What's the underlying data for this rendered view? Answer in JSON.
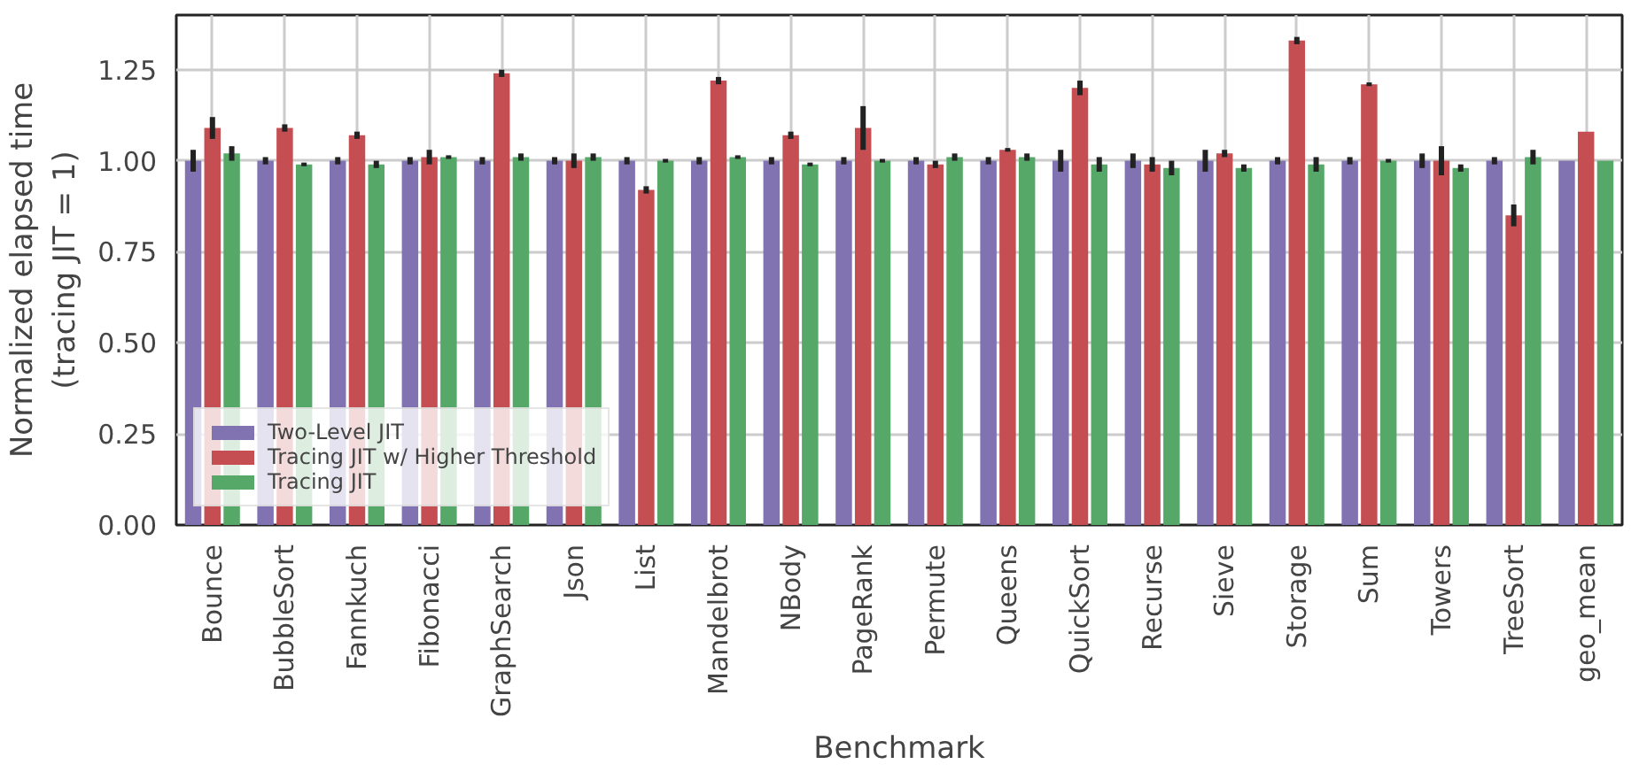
{
  "chart_data": {
    "type": "bar",
    "xlabel": "Benchmark",
    "ylabel": "Normalized elapsed time\n(tracing JIT = 1)",
    "categories": [
      "Bounce",
      "BubbleSort",
      "Fannkuch",
      "Fibonacci",
      "GraphSearch",
      "Json",
      "List",
      "Mandelbrot",
      "NBody",
      "PageRank",
      "Permute",
      "Queens",
      "QuickSort",
      "Recurse",
      "Sieve",
      "Storage",
      "Sum",
      "Towers",
      "TreeSort",
      "geo_mean"
    ],
    "series": [
      {
        "name": "Two-Level JIT",
        "color": "#8172b2",
        "values": [
          1.0,
          1.0,
          1.0,
          1.0,
          1.0,
          1.0,
          1.0,
          1.0,
          1.0,
          1.0,
          1.0,
          1.0,
          1.0,
          1.0,
          1.0,
          1.0,
          1.0,
          1.0,
          1.0,
          1.0
        ],
        "errors": [
          0.03,
          0.01,
          0.01,
          0.01,
          0.01,
          0.01,
          0.01,
          0.01,
          0.01,
          0.01,
          0.01,
          0.01,
          0.03,
          0.02,
          0.03,
          0.01,
          0.01,
          0.02,
          0.01,
          null
        ]
      },
      {
        "name": "Tracing JIT w/ Higher Threshold",
        "color": "#c44e52",
        "values": [
          1.09,
          1.09,
          1.07,
          1.01,
          1.24,
          1.0,
          0.92,
          1.22,
          1.07,
          1.09,
          0.99,
          1.03,
          1.2,
          0.99,
          1.02,
          1.33,
          1.21,
          1.0,
          0.85,
          1.08
        ],
        "errors": [
          0.03,
          0.01,
          0.01,
          0.02,
          0.01,
          0.02,
          0.01,
          0.01,
          0.01,
          0.06,
          0.01,
          0.005,
          0.02,
          0.02,
          0.01,
          0.01,
          0.005,
          0.04,
          0.03,
          null
        ]
      },
      {
        "name": "Tracing JIT",
        "color": "#55a868",
        "values": [
          1.02,
          0.99,
          0.99,
          1.01,
          1.01,
          1.01,
          1.0,
          1.01,
          0.99,
          1.0,
          1.01,
          1.01,
          0.99,
          0.98,
          0.98,
          0.99,
          1.0,
          0.98,
          1.01,
          1.0
        ],
        "errors": [
          0.02,
          0.005,
          0.01,
          0.005,
          0.01,
          0.01,
          0.005,
          0.005,
          0.005,
          0.005,
          0.01,
          0.01,
          0.02,
          0.02,
          0.01,
          0.02,
          0.005,
          0.01,
          0.02,
          null
        ]
      }
    ],
    "ylim": [
      0,
      1.4
    ],
    "yticks": [
      {
        "value": 0,
        "label": "0.00"
      },
      {
        "value": 0.25,
        "label": "0.25"
      },
      {
        "value": 0.5,
        "label": "0.50"
      },
      {
        "value": 0.75,
        "label": "0.75"
      },
      {
        "value": 1.0,
        "label": "1.00"
      },
      {
        "value": 1.25,
        "label": "1.25"
      }
    ],
    "grid": true,
    "legend": "bottom left"
  }
}
